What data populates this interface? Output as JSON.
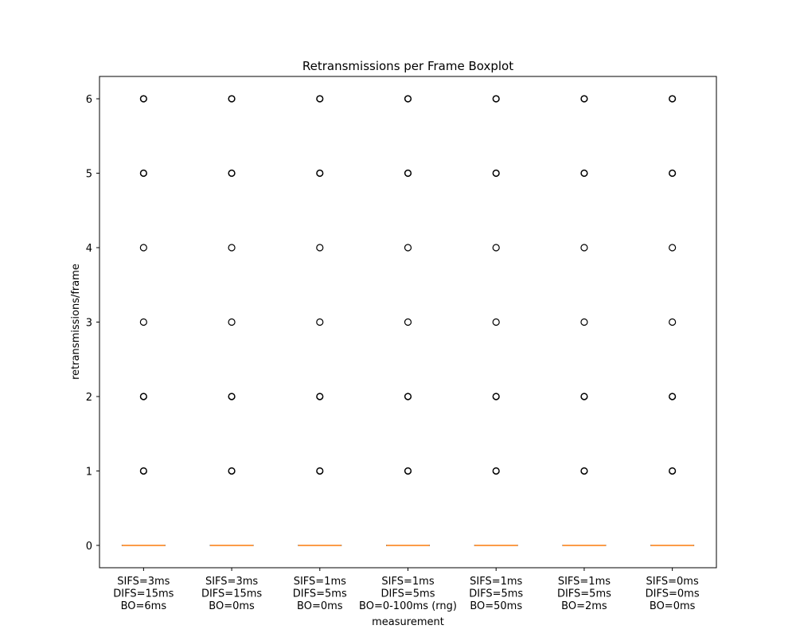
{
  "chart_data": {
    "type": "boxplot",
    "title": "Retransmissions per Frame Boxplot",
    "xlabel": "measurement",
    "ylabel": "retransmissions/frame",
    "ylim": [
      -0.3,
      6.3
    ],
    "yticks": [
      0,
      1,
      2,
      3,
      4,
      5,
      6
    ],
    "grid": false,
    "categories": [
      [
        "SIFS=3ms",
        "DIFS=15ms",
        "BO=6ms"
      ],
      [
        "SIFS=3ms",
        "DIFS=15ms",
        "BO=0ms"
      ],
      [
        "SIFS=1ms",
        "DIFS=5ms",
        "BO=0ms"
      ],
      [
        "SIFS=1ms",
        "DIFS=5ms",
        "BO=0-100ms (rng)"
      ],
      [
        "SIFS=1ms",
        "DIFS=5ms",
        "BO=50ms"
      ],
      [
        "SIFS=1ms",
        "DIFS=5ms",
        "BO=2ms"
      ],
      [
        "SIFS=0ms",
        "DIFS=0ms",
        "BO=0ms"
      ]
    ],
    "boxes": [
      {
        "whislo": 0,
        "q1": 0,
        "med": 0,
        "q3": 0,
        "whishi": 0,
        "fliers": [
          1,
          2,
          3,
          4,
          5,
          6
        ]
      },
      {
        "whislo": 0,
        "q1": 0,
        "med": 0,
        "q3": 0,
        "whishi": 0,
        "fliers": [
          1,
          2,
          3,
          4,
          5,
          6
        ]
      },
      {
        "whislo": 0,
        "q1": 0,
        "med": 0,
        "q3": 0,
        "whishi": 0,
        "fliers": [
          1,
          2,
          3,
          4,
          5,
          6
        ]
      },
      {
        "whislo": 0,
        "q1": 0,
        "med": 0,
        "q3": 0,
        "whishi": 0,
        "fliers": [
          1,
          2,
          3,
          4,
          5,
          6
        ]
      },
      {
        "whislo": 0,
        "q1": 0,
        "med": 0,
        "q3": 0,
        "whishi": 0,
        "fliers": [
          1,
          2,
          3,
          4,
          5,
          6
        ]
      },
      {
        "whislo": 0,
        "q1": 0,
        "med": 0,
        "q3": 0,
        "whishi": 0,
        "fliers": [
          1,
          2,
          3,
          4,
          5,
          6
        ]
      },
      {
        "whislo": 0,
        "q1": 0,
        "med": 0,
        "q3": 0,
        "whishi": 0,
        "fliers": [
          1,
          2,
          3,
          4,
          5,
          6
        ]
      }
    ],
    "colors": {
      "median": "#ff7f0e",
      "box": "#000000",
      "flier_edge": "#000000"
    }
  }
}
